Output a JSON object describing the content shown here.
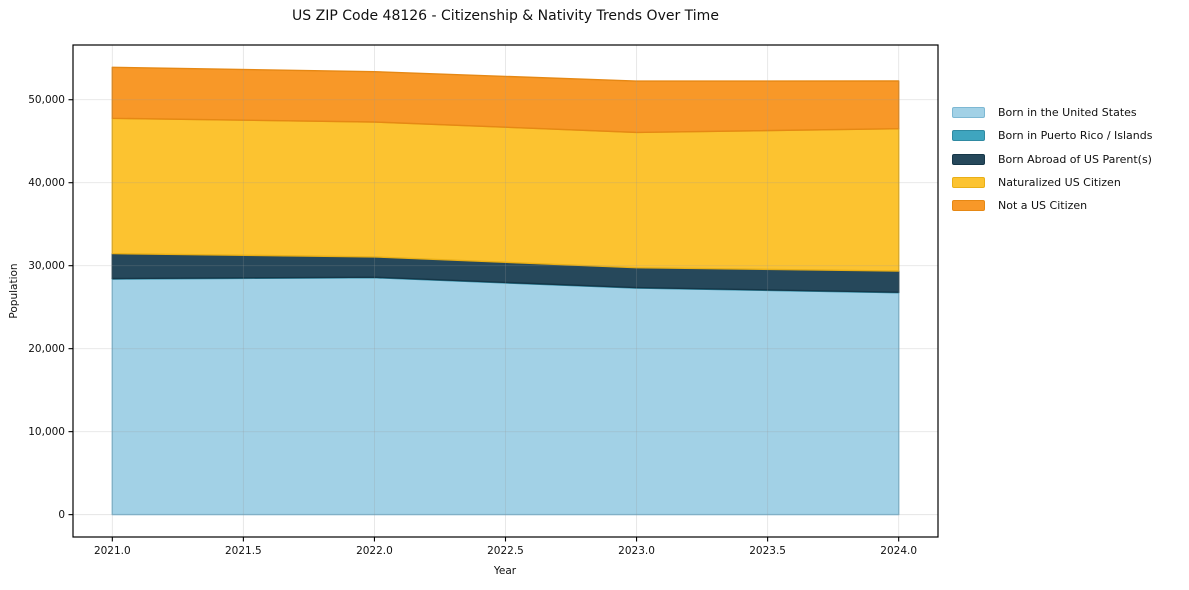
{
  "title": "US ZIP Code 48126 - Citizenship & Nativity Trends Over Time",
  "chart_data": {
    "type": "area",
    "stacked": true,
    "title": "US ZIP Code 48126 - Citizenship & Nativity Trends Over Time",
    "xlabel": "Year",
    "ylabel": "Population",
    "x": [
      2021,
      2022,
      2023,
      2024
    ],
    "series": [
      {
        "name": "Born in the United States",
        "color": "#a2d1e6",
        "edge": "#7db8d3",
        "values": [
          28400,
          28550,
          27300,
          26750
        ]
      },
      {
        "name": "Born in Puerto Rico / Islands",
        "color": "#3fa5bf",
        "edge": "#2f8aa2",
        "values": [
          60,
          60,
          60,
          60
        ]
      },
      {
        "name": "Born Abroad of US Parent(s)",
        "color": "#26485b",
        "edge": "#163748",
        "values": [
          3000,
          2450,
          2400,
          2550
        ]
      },
      {
        "name": "Naturalized US Citizen",
        "color": "#fcc330",
        "edge": "#e9af16",
        "values": [
          16300,
          16260,
          16300,
          17150
        ]
      },
      {
        "name": "Not a US Citizen",
        "color": "#f89828",
        "edge": "#e68814",
        "values": [
          6150,
          6060,
          6180,
          5750
        ]
      }
    ],
    "x_tick_labels": [
      "2021.0",
      "2021.5",
      "2022.0",
      "2022.5",
      "2023.0",
      "2023.5",
      "2024.0"
    ],
    "x_tick_values": [
      2021,
      2021.5,
      2022,
      2022.5,
      2023,
      2023.5,
      2024
    ],
    "y_tick_labels": [
      "0",
      "10,000",
      "20,000",
      "30,000",
      "40,000",
      "50,000"
    ],
    "y_tick_values": [
      0,
      10000,
      20000,
      30000,
      40000,
      50000
    ],
    "xlim": [
      2020.85,
      2024.15
    ],
    "ylim": [
      -2695,
      56595
    ],
    "grid": true,
    "legend_position": "right-outside",
    "axis_color": "#000000",
    "grid_color": "#999999"
  }
}
